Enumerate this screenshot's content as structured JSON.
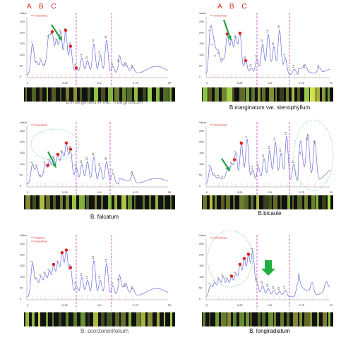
{
  "header_left": "A B C",
  "header_right": "A B C",
  "legend": {
    "smoothed": "Smoothed",
    "warped": "Warped"
  },
  "axis": {
    "ylabel": "Value",
    "yticks": [
      "250",
      "200",
      "150",
      "100",
      "50",
      "0"
    ],
    "xticks": [
      "0",
      "0.25",
      "0.5",
      "0.75",
      "Rf"
    ]
  },
  "panels": [
    {
      "caption": "B.marginatum var. marginatum",
      "caption_short": "",
      "legend": [
        "Smoothed"
      ],
      "peaks": [
        "1",
        "2",
        "3",
        "4",
        "5",
        "6",
        "7",
        "8",
        "9",
        "10",
        "11",
        "12",
        "13",
        "14",
        "15",
        "16",
        "17",
        "18",
        "19",
        "20"
      ],
      "colors": {
        "trace": "#6b6bd8",
        "smoothed": "#e02020",
        "marker": "#e02020",
        "divider": "#c040c0",
        "arrow": "#20a040"
      }
    },
    {
      "caption": "B.marginatum var. stenophyllum",
      "legend": [
        "Smoothed"
      ],
      "peaks": [
        "1",
        "2",
        "3",
        "4",
        "5",
        "6",
        "7",
        "8",
        "9",
        "10",
        "11",
        "12",
        "13",
        "14",
        "15",
        "16",
        "17",
        "18",
        "19",
        "20"
      ]
    },
    {
      "caption": "B. falcatum",
      "legend": [
        "Smoothed"
      ],
      "peaks": [
        "1",
        "2",
        "3",
        "4",
        "5",
        "6",
        "7",
        "8",
        "9",
        "10",
        "11",
        "12",
        "13",
        "14",
        "15",
        "16",
        "17",
        "18"
      ]
    },
    {
      "caption": "B.bicaule",
      "legend": [
        "Smoothed"
      ],
      "peaks": [
        "1",
        "2",
        "3",
        "4",
        "5",
        "6",
        "7",
        "8",
        "9",
        "10",
        "11",
        "12",
        "13",
        "14",
        "15",
        "16",
        "17",
        "18",
        "19",
        "20"
      ]
    },
    {
      "caption": "B. scorzonerifolium",
      "legend": [
        "Warped",
        "Smoothed"
      ],
      "peaks": [
        "1",
        "2",
        "3",
        "4",
        "5",
        "6",
        "7",
        "8",
        "9",
        "10",
        "11",
        "12",
        "13",
        "14",
        "15",
        "16",
        "17",
        "18",
        "19",
        "20"
      ]
    },
    {
      "caption": "B. longiradiatum",
      "legend": [
        "Smoothed"
      ],
      "peaks": [
        "1",
        "2",
        "3",
        "4",
        "5",
        "6",
        "7",
        "8",
        "9",
        "10",
        "11",
        "12",
        "13",
        "14",
        "15",
        "16",
        "17"
      ]
    }
  ]
}
